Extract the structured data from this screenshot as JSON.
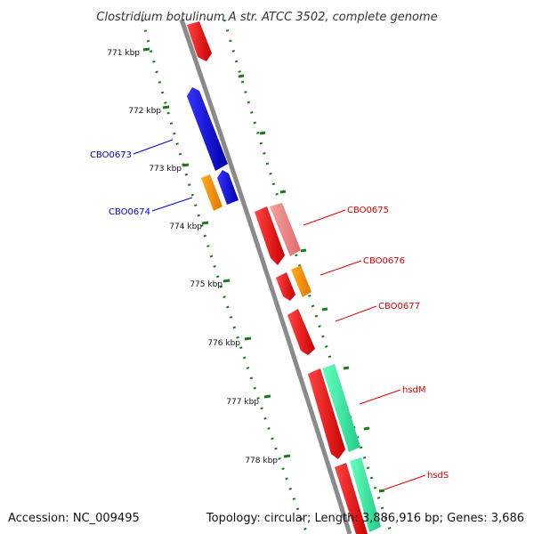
{
  "map": {
    "title": "Clostridium botulinum A str. ATCC 3502, complete genome",
    "accession": "Accession: NC_009495",
    "summary": "Topology: circular; Length: 3,886,916 bp; Genes: 3,686"
  },
  "ticks": [
    {
      "label": "771 kbp"
    },
    {
      "label": "772 kbp"
    },
    {
      "label": "773 kbp"
    },
    {
      "label": "774 kbp"
    },
    {
      "label": "775 kbp"
    },
    {
      "label": "776 kbp"
    },
    {
      "label": "777 kbp"
    },
    {
      "label": "778 kbp"
    }
  ],
  "gene_labels": [
    {
      "text": "CBO0673",
      "strand": "reverse"
    },
    {
      "text": "CBO0674",
      "strand": "reverse"
    },
    {
      "text": "CBO0675",
      "strand": "forward"
    },
    {
      "text": "CBO0676",
      "strand": "forward"
    },
    {
      "text": "CBO0677",
      "strand": "forward"
    },
    {
      "text": "hsdM",
      "strand": "forward"
    },
    {
      "text": "hsdS",
      "strand": "forward"
    }
  ],
  "colors": {
    "backbone": "#888888",
    "tick": "#1a7a1a",
    "forward_label": "#dd0000",
    "reverse_label": "#0000cc",
    "cds_forward": "#ff0000",
    "cds_reverse": "#0000ff",
    "rrna_like": "#ff8c00",
    "pseudo": "#f08080",
    "hit": "#33e6a0"
  }
}
